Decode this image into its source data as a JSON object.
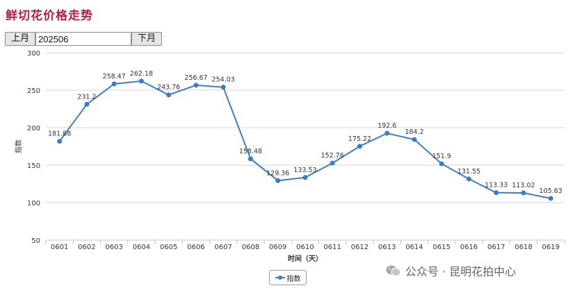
{
  "page_title": "鲜切花价格走势",
  "controls": {
    "prev_label": "上月",
    "month_value": "202506",
    "next_label": "下月"
  },
  "watermark": "公众号 · 昆明花拍中心",
  "chart_data": {
    "type": "line",
    "categories": [
      "0601",
      "0602",
      "0603",
      "0604",
      "0605",
      "0606",
      "0607",
      "0608",
      "0609",
      "0610",
      "0611",
      "0612",
      "0613",
      "0614",
      "0615",
      "0616",
      "0617",
      "0618",
      "0619"
    ],
    "series": [
      {
        "name": "指数",
        "color": "#3a7dc6",
        "values": [
          181.88,
          231.2,
          258.47,
          262.18,
          243.76,
          256.67,
          254.03,
          158.48,
          129.36,
          133.53,
          152.76,
          175.22,
          192.6,
          184.2,
          151.9,
          131.55,
          113.33,
          113.02,
          105.63
        ],
        "labels": [
          "181.88",
          "231.2",
          "258.47",
          "262.18",
          "243.76",
          "256.67",
          "254.03",
          "158.48",
          "129.36",
          "133.53",
          "152.76",
          "175.22",
          "192.6",
          "184.2",
          "151.9",
          "131.55",
          "113.33",
          "113.02",
          "105.63"
        ]
      }
    ],
    "ylim": [
      50,
      300
    ],
    "yticks": [
      "50",
      "100",
      "150",
      "200",
      "250",
      "300"
    ],
    "ylabel": "指数",
    "xlabel": "时间（天）",
    "legend": "bottom-center",
    "grid": true
  }
}
